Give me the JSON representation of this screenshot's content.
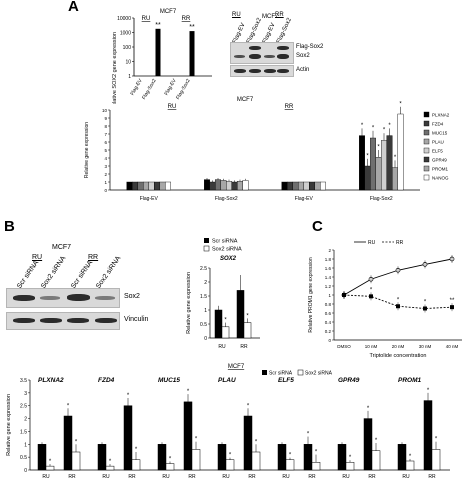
{
  "panels": {
    "a": "A",
    "b": "B",
    "c": "C"
  },
  "colors": {
    "black": "#000000",
    "dark": "#3a3a3a",
    "mid": "#6f6f6f",
    "light": "#a7a7a7",
    "lighter": "#cfcfcf",
    "white": "#ffffff"
  },
  "blots": {
    "a_title": "MCF7",
    "a_groups": [
      "RU",
      "RR"
    ],
    "a_lanes": [
      "Flag-EV",
      "Flag-Sox2",
      "Flag-EV",
      "Flag-Sox2"
    ],
    "a_bands": [
      "Flag-Sox2",
      "Sox2",
      "Actin"
    ],
    "b_title": "MCF7",
    "b_groups": [
      "RU",
      "RR"
    ],
    "b_lanes": [
      "Scr siRNA",
      "Sox2 siRNA",
      "Scr siRNA",
      "Sox2 siRNA"
    ],
    "b_bands": [
      "Sox2",
      "Vinculin"
    ]
  },
  "chart_data": [
    {
      "id": "a_top",
      "type": "bar",
      "title": "MCF7",
      "group_labels": [
        "RU",
        "RR"
      ],
      "categories": [
        "Flag-EV",
        "Flag-Sox2",
        "Flag-EV",
        "Flag-Sox2"
      ],
      "values": [
        1,
        1800,
        1,
        1250
      ],
      "ylabel": "Relative SOX2 gene expression",
      "yscale": "log",
      "yticks": [
        "1",
        "10",
        "100",
        "1000",
        "10000"
      ],
      "annotations": [
        "**",
        "**"
      ]
    },
    {
      "id": "a_main",
      "type": "bar",
      "title": "MCF7",
      "group_labels": [
        "RU",
        "RR"
      ],
      "categories": [
        "Flag-EV",
        "Flag-Sox2",
        "Flag-EV",
        "Flag-Sox2"
      ],
      "ylabel": "Relative gene expression",
      "ylim": [
        0,
        10
      ],
      "yticks": [
        "0",
        "1",
        "2",
        "3",
        "4",
        "5",
        "6",
        "7",
        "8",
        "9",
        "10"
      ],
      "legend": [
        "PLXNA2",
        "FZD4",
        "MUC15",
        "PLAU",
        "ELF5",
        "GPR49",
        "PROM1",
        "NANOG"
      ],
      "series": [
        {
          "name": "PLXNA2",
          "values": [
            1.0,
            1.3,
            1.0,
            6.8
          ]
        },
        {
          "name": "FZD4",
          "values": [
            1.0,
            1.0,
            1.0,
            3.0
          ]
        },
        {
          "name": "MUC15",
          "values": [
            1.0,
            1.3,
            1.0,
            6.5
          ]
        },
        {
          "name": "PLAU",
          "values": [
            1.0,
            1.2,
            1.0,
            4.1
          ]
        },
        {
          "name": "ELF5",
          "values": [
            1.0,
            1.1,
            1.0,
            6.2
          ]
        },
        {
          "name": "GPR49",
          "values": [
            1.0,
            1.0,
            1.0,
            6.8
          ]
        },
        {
          "name": "PROM1",
          "values": [
            1.0,
            1.1,
            1.0,
            2.8
          ]
        },
        {
          "name": "NANOG",
          "values": [
            1.0,
            1.2,
            1.0,
            9.5
          ]
        }
      ],
      "annotations": [
        "*"
      ]
    },
    {
      "id": "b_sox2",
      "type": "bar",
      "title": "SOX2",
      "categories": [
        "RU",
        "RR"
      ],
      "legend": [
        "Scr siRNA",
        "Sox2 siRNA"
      ],
      "series": [
        {
          "name": "Scr siRNA",
          "values": [
            1.0,
            1.7
          ]
        },
        {
          "name": "Sox2 siRNA",
          "values": [
            0.4,
            0.55
          ]
        }
      ],
      "ylabel": "Relative gene expression",
      "ylim": [
        0,
        2.5
      ],
      "yticks": [
        "0",
        "0.5",
        "1",
        "1.5",
        "2",
        "2.5"
      ],
      "annotations": [
        "*"
      ]
    },
    {
      "id": "c_line",
      "type": "line",
      "x": [
        "DMSO",
        "10 nM",
        "20 nM",
        "30 nM",
        "40 nM"
      ],
      "xlabel": "Triptolide  concentration",
      "ylabel": "Relative PROM1 gene expression",
      "ylim": [
        0,
        2
      ],
      "yticks": [
        "0",
        "0.2",
        "0.4",
        "0.6",
        "0.8",
        "1",
        "1.2",
        "1.4",
        "1.6",
        "1.8",
        "2"
      ],
      "legend": [
        "RU",
        "RR"
      ],
      "series": [
        {
          "name": "RU",
          "values": [
            1.0,
            1.35,
            1.55,
            1.68,
            1.8
          ]
        },
        {
          "name": "RR",
          "values": [
            1.0,
            0.97,
            0.75,
            0.7,
            0.73
          ]
        }
      ],
      "annotations": [
        "*",
        "*",
        "*",
        "**"
      ]
    },
    {
      "id": "b_bottom",
      "type": "bar",
      "title": "MCF7",
      "legend": [
        "Scr siRNA",
        "Sox2 siRNA"
      ],
      "genes": [
        "PLXNA2",
        "FZD4",
        "MUC15",
        "PLAU",
        "ELF5",
        "GPR49",
        "PROM1"
      ],
      "categories": [
        "RU",
        "RR"
      ],
      "ylabel": "Relative gene expression",
      "ylim": [
        0,
        3.5
      ],
      "yticks": [
        "0",
        "0.5",
        "1",
        "1.5",
        "2",
        "2.5",
        "3",
        "3.5"
      ],
      "series": [
        {
          "name": "Scr siRNA",
          "values": [
            [
              1.0,
              2.1
            ],
            [
              1.0,
              2.5
            ],
            [
              1.0,
              2.65
            ],
            [
              1.0,
              2.1
            ],
            [
              1.0,
              1.0
            ],
            [
              1.0,
              2.0
            ],
            [
              1.0,
              2.7
            ]
          ]
        },
        {
          "name": "Sox2 siRNA",
          "values": [
            [
              0.15,
              0.7
            ],
            [
              0.15,
              0.4
            ],
            [
              0.25,
              0.8
            ],
            [
              0.4,
              0.7
            ],
            [
              0.4,
              0.3
            ],
            [
              0.3,
              0.75
            ],
            [
              0.35,
              0.8
            ]
          ]
        }
      ],
      "annotations": [
        "*"
      ]
    }
  ]
}
